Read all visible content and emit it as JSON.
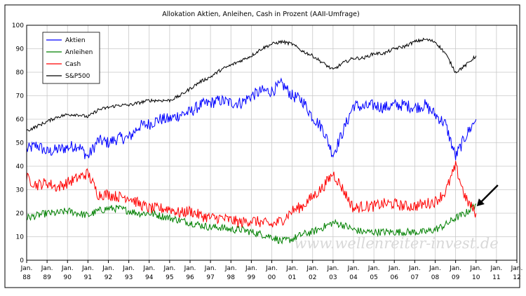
{
  "chart_data": {
    "type": "line",
    "title": "Allokation Aktien, Anleihen, Cash in Prozent (AAII-Umfrage)",
    "xlabel": "",
    "ylabel": "",
    "ylim": [
      0,
      100
    ],
    "yticks": [
      0,
      10,
      20,
      30,
      40,
      50,
      60,
      70,
      80,
      90,
      100
    ],
    "x_tick_labels": [
      {
        "top": "Jan.",
        "bottom": "88"
      },
      {
        "top": "Jan.",
        "bottom": "89"
      },
      {
        "top": "Jan.",
        "bottom": "90"
      },
      {
        "top": "Jan.",
        "bottom": "91"
      },
      {
        "top": "Jan.",
        "bottom": "92"
      },
      {
        "top": "Jan.",
        "bottom": "93"
      },
      {
        "top": "Jan.",
        "bottom": "94"
      },
      {
        "top": "Jan.",
        "bottom": "95"
      },
      {
        "top": "Jan.",
        "bottom": "96"
      },
      {
        "top": "Jan.",
        "bottom": "97"
      },
      {
        "top": "Jan.",
        "bottom": "98"
      },
      {
        "top": "Jan.",
        "bottom": "99"
      },
      {
        "top": "Jan.",
        "bottom": "00"
      },
      {
        "top": "Jan.",
        "bottom": "01"
      },
      {
        "top": "Jan.",
        "bottom": "02"
      },
      {
        "top": "Jan.",
        "bottom": "03"
      },
      {
        "top": "Jan.",
        "bottom": "04"
      },
      {
        "top": "Jan.",
        "bottom": "05"
      },
      {
        "top": "Jan.",
        "bottom": "06"
      },
      {
        "top": "Jan.",
        "bottom": "07"
      },
      {
        "top": "Jan.",
        "bottom": "08"
      },
      {
        "top": "Jan.",
        "bottom": "09"
      },
      {
        "top": "Jan.",
        "bottom": "10"
      },
      {
        "top": "Jan.",
        "bottom": "11"
      },
      {
        "top": "Jan.",
        "bottom": "12"
      }
    ],
    "x_range": [
      1988,
      2012
    ],
    "grid": true,
    "legend": "top-left",
    "x": [
      1988.0,
      1988.5,
      1989.0,
      1989.5,
      1990.0,
      1990.5,
      1991.0,
      1991.5,
      1992.0,
      1992.5,
      1993.0,
      1993.5,
      1994.0,
      1994.5,
      1995.0,
      1995.5,
      1996.0,
      1996.5,
      1997.0,
      1997.5,
      1998.0,
      1998.5,
      1999.0,
      1999.5,
      2000.0,
      2000.5,
      2001.0,
      2001.5,
      2002.0,
      2002.5,
      2003.0,
      2003.5,
      2004.0,
      2004.5,
      2005.0,
      2005.5,
      2006.0,
      2006.5,
      2007.0,
      2007.5,
      2008.0,
      2008.5,
      2009.0,
      2009.5,
      2010.0
    ],
    "series": [
      {
        "name": "Aktien",
        "color": "#0000ff",
        "values": [
          47,
          49,
          46,
          47,
          48,
          49,
          44,
          51,
          50,
          52,
          52,
          57,
          58,
          60,
          60,
          62,
          63,
          66,
          67,
          68,
          67,
          67,
          70,
          72,
          72,
          75,
          70,
          68,
          61,
          56,
          45,
          55,
          66,
          65,
          66,
          65,
          66,
          66,
          65,
          66,
          62,
          58,
          44,
          53,
          60
        ]
      },
      {
        "name": "Anleihen",
        "color": "#008000",
        "values": [
          18,
          19,
          20,
          20,
          21,
          20,
          19,
          21,
          22,
          22,
          21,
          20,
          20,
          19,
          18,
          17,
          16,
          15,
          14,
          14,
          13,
          13,
          12,
          11,
          10,
          8,
          9,
          11,
          12,
          14,
          16,
          15,
          13,
          12,
          12,
          12,
          12,
          12,
          12,
          12,
          13,
          15,
          18,
          20,
          24
        ]
      },
      {
        "name": "Cash",
        "color": "#ff0000",
        "values": [
          35,
          32,
          33,
          31,
          33,
          35,
          37,
          28,
          28,
          27,
          27,
          24,
          22,
          22,
          22,
          20,
          21,
          19,
          18,
          18,
          17,
          16,
          17,
          16,
          15,
          17,
          21,
          23,
          27,
          31,
          37,
          30,
          22,
          23,
          23,
          24,
          24,
          23,
          23,
          24,
          25,
          29,
          40,
          26,
          20
        ]
      },
      {
        "name": "S&P500",
        "color": "#000000",
        "values": [
          55,
          57,
          59,
          61,
          62,
          62,
          61,
          64,
          65,
          66,
          66,
          67,
          68,
          68,
          68,
          70,
          73,
          76,
          78,
          81,
          83,
          85,
          87,
          90,
          92,
          93,
          92,
          89,
          87,
          84,
          81,
          84,
          86,
          86,
          88,
          88,
          90,
          91,
          93,
          94,
          93,
          88,
          80,
          83,
          87
        ]
      }
    ],
    "watermark": "www.wellenreiter-invest.de",
    "colors": {
      "grid": "#c8c8c8",
      "axis": "#000000",
      "frame": "#000000"
    },
    "annotation": {
      "type": "arrow",
      "points_to_x": 2009.9,
      "points_to_y": 23
    }
  }
}
